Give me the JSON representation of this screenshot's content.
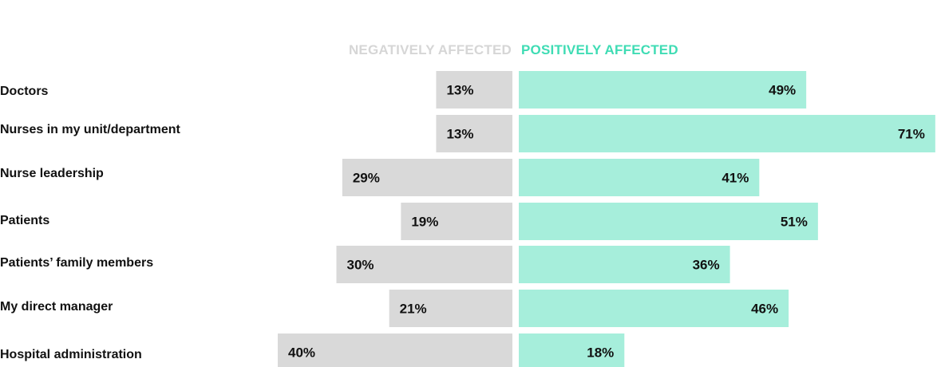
{
  "chart_data": {
    "type": "bar",
    "orientation": "horizontal-diverging",
    "categories": [
      "Doctors",
      "Nurses in my unit/department",
      "Nurse leadership",
      "Patients",
      "Patients’ family members",
      "My direct manager",
      "Hospital administration"
    ],
    "series": [
      {
        "name": "NEGATIVELY AFFECTED",
        "values": [
          13,
          13,
          29,
          19,
          30,
          21,
          40
        ],
        "labels": [
          "13%",
          "13%",
          "29%",
          "19%",
          "30%",
          "21%",
          "40%"
        ],
        "color": "#d9d9d9",
        "legend_color": "#d6d6d6"
      },
      {
        "name": "POSITIVELY AFFECTED",
        "values": [
          49,
          71,
          41,
          51,
          36,
          46,
          18
        ],
        "labels": [
          "49%",
          "71%",
          "41%",
          "51%",
          "36%",
          "46%",
          "18%"
        ],
        "color": "#a6eedb",
        "legend_color": "#3fdcb4"
      }
    ],
    "legend_position": "top-center",
    "grid": false,
    "xlim": [
      -40,
      71
    ]
  }
}
